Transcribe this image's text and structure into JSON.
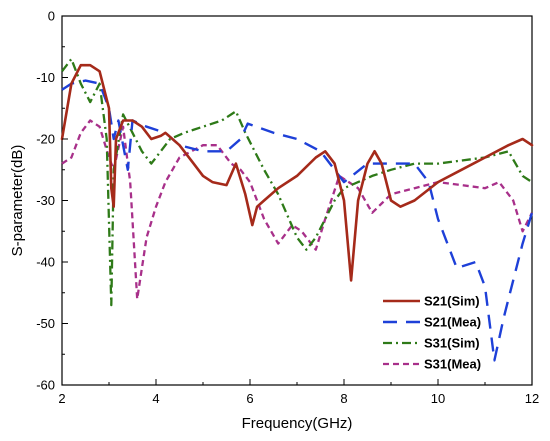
{
  "chart_data": {
    "type": "line",
    "xlabel": "Frequency(GHz)",
    "ylabel": "S-parameter(dB)",
    "xlim": [
      2,
      12
    ],
    "ylim": [
      -60,
      0
    ],
    "xticks": [
      2,
      4,
      6,
      8,
      10,
      12
    ],
    "yticks": [
      0,
      -10,
      -20,
      -30,
      -40,
      -50,
      -60
    ],
    "xtick_labels": [
      "2",
      "4",
      "6",
      "8",
      "10",
      "12"
    ],
    "ytick_labels": [
      "0",
      "-10",
      "-20",
      "-30",
      "-40",
      "-50",
      "-60"
    ],
    "legend_position": "bottom-right",
    "grid": false,
    "series": [
      {
        "name": "S21(Sim)",
        "color": "#a52a1a",
        "dash": "solid",
        "points": [
          [
            2.0,
            -20
          ],
          [
            2.2,
            -11
          ],
          [
            2.4,
            -8
          ],
          [
            2.6,
            -8
          ],
          [
            2.8,
            -9
          ],
          [
            3.0,
            -15
          ],
          [
            3.05,
            -28
          ],
          [
            3.1,
            -31
          ],
          [
            3.15,
            -20
          ],
          [
            3.3,
            -17
          ],
          [
            3.5,
            -17
          ],
          [
            3.7,
            -18
          ],
          [
            3.9,
            -20
          ],
          [
            4.1,
            -19.5
          ],
          [
            4.2,
            -19
          ],
          [
            4.5,
            -21
          ],
          [
            4.8,
            -24
          ],
          [
            5.0,
            -26
          ],
          [
            5.2,
            -27
          ],
          [
            5.5,
            -27.5
          ],
          [
            5.7,
            -24
          ],
          [
            5.9,
            -29
          ],
          [
            6.05,
            -34
          ],
          [
            6.15,
            -31
          ],
          [
            6.3,
            -30
          ],
          [
            6.6,
            -28
          ],
          [
            7.0,
            -26
          ],
          [
            7.4,
            -23
          ],
          [
            7.6,
            -22
          ],
          [
            7.8,
            -24
          ],
          [
            8.0,
            -30
          ],
          [
            8.15,
            -43
          ],
          [
            8.3,
            -30
          ],
          [
            8.5,
            -24
          ],
          [
            8.65,
            -22
          ],
          [
            8.8,
            -24
          ],
          [
            9.0,
            -30
          ],
          [
            9.2,
            -31
          ],
          [
            9.5,
            -30
          ],
          [
            10.0,
            -27
          ],
          [
            10.5,
            -25
          ],
          [
            11.0,
            -23
          ],
          [
            11.5,
            -21
          ],
          [
            11.8,
            -20
          ],
          [
            12.0,
            -21
          ]
        ]
      },
      {
        "name": "S21(Mea)",
        "color": "#1e40d8",
        "dash": "long-dash",
        "points": [
          [
            2.0,
            -12
          ],
          [
            2.2,
            -11
          ],
          [
            2.5,
            -10.5
          ],
          [
            2.8,
            -11
          ],
          [
            3.0,
            -15
          ],
          [
            3.1,
            -20
          ],
          [
            3.2,
            -17
          ],
          [
            3.4,
            -25
          ],
          [
            3.5,
            -17
          ],
          [
            3.8,
            -18
          ],
          [
            4.2,
            -19
          ],
          [
            4.5,
            -21
          ],
          [
            5.0,
            -22
          ],
          [
            5.5,
            -22
          ],
          [
            5.8,
            -20
          ],
          [
            5.95,
            -17.5
          ],
          [
            6.5,
            -19
          ],
          [
            7.0,
            -20
          ],
          [
            7.5,
            -22
          ],
          [
            8.0,
            -27
          ],
          [
            8.5,
            -24
          ],
          [
            9.0,
            -24
          ],
          [
            9.5,
            -24
          ],
          [
            9.8,
            -27
          ],
          [
            10.0,
            -33
          ],
          [
            10.4,
            -41
          ],
          [
            10.8,
            -40
          ],
          [
            11.0,
            -44
          ],
          [
            11.2,
            -56
          ],
          [
            11.4,
            -49
          ],
          [
            11.6,
            -43
          ],
          [
            11.8,
            -37
          ],
          [
            12.0,
            -32
          ]
        ]
      },
      {
        "name": "S31(Sim)",
        "color": "#2e7a18",
        "dash": "dash-dot",
        "points": [
          [
            2.0,
            -9
          ],
          [
            2.2,
            -7
          ],
          [
            2.4,
            -11
          ],
          [
            2.6,
            -14
          ],
          [
            2.8,
            -11
          ],
          [
            2.95,
            -20
          ],
          [
            3.05,
            -47
          ],
          [
            3.1,
            -25
          ],
          [
            3.3,
            -16
          ],
          [
            3.5,
            -19
          ],
          [
            3.7,
            -22
          ],
          [
            3.9,
            -24
          ],
          [
            4.0,
            -23
          ],
          [
            4.3,
            -20
          ],
          [
            4.6,
            -19
          ],
          [
            5.0,
            -18
          ],
          [
            5.4,
            -17
          ],
          [
            5.7,
            -15.5
          ],
          [
            5.9,
            -19
          ],
          [
            6.1,
            -22
          ],
          [
            6.3,
            -25
          ],
          [
            6.6,
            -29
          ],
          [
            7.0,
            -36
          ],
          [
            7.2,
            -38
          ],
          [
            7.4,
            -36
          ],
          [
            7.6,
            -33
          ],
          [
            7.8,
            -30
          ],
          [
            8.0,
            -28
          ],
          [
            8.3,
            -27
          ],
          [
            8.6,
            -26
          ],
          [
            9.0,
            -25
          ],
          [
            9.5,
            -24
          ],
          [
            10.0,
            -24
          ],
          [
            10.5,
            -23.5
          ],
          [
            11.0,
            -23
          ],
          [
            11.5,
            -22
          ],
          [
            11.8,
            -26
          ],
          [
            12.0,
            -27
          ]
        ]
      },
      {
        "name": "S31(Mea)",
        "color": "#a8308a",
        "dash": "short-dash",
        "points": [
          [
            2.0,
            -24
          ],
          [
            2.2,
            -23
          ],
          [
            2.4,
            -19
          ],
          [
            2.6,
            -17
          ],
          [
            2.8,
            -18
          ],
          [
            3.0,
            -23
          ],
          [
            3.1,
            -25
          ],
          [
            3.3,
            -18
          ],
          [
            3.45,
            -27
          ],
          [
            3.6,
            -46
          ],
          [
            3.8,
            -36
          ],
          [
            4.0,
            -31
          ],
          [
            4.2,
            -27
          ],
          [
            4.5,
            -23
          ],
          [
            5.0,
            -21
          ],
          [
            5.3,
            -21
          ],
          [
            5.6,
            -24
          ],
          [
            5.8,
            -25
          ],
          [
            6.0,
            -27
          ],
          [
            6.3,
            -33
          ],
          [
            6.6,
            -37
          ],
          [
            6.9,
            -34
          ],
          [
            7.1,
            -35
          ],
          [
            7.4,
            -38
          ],
          [
            7.6,
            -33
          ],
          [
            7.9,
            -26
          ],
          [
            8.3,
            -28
          ],
          [
            8.6,
            -32
          ],
          [
            9.0,
            -29
          ],
          [
            9.5,
            -28
          ],
          [
            10.0,
            -27
          ],
          [
            10.5,
            -27.5
          ],
          [
            11.0,
            -28
          ],
          [
            11.3,
            -27
          ],
          [
            11.6,
            -30
          ],
          [
            11.8,
            -35
          ],
          [
            12.0,
            -32
          ]
        ]
      }
    ]
  }
}
